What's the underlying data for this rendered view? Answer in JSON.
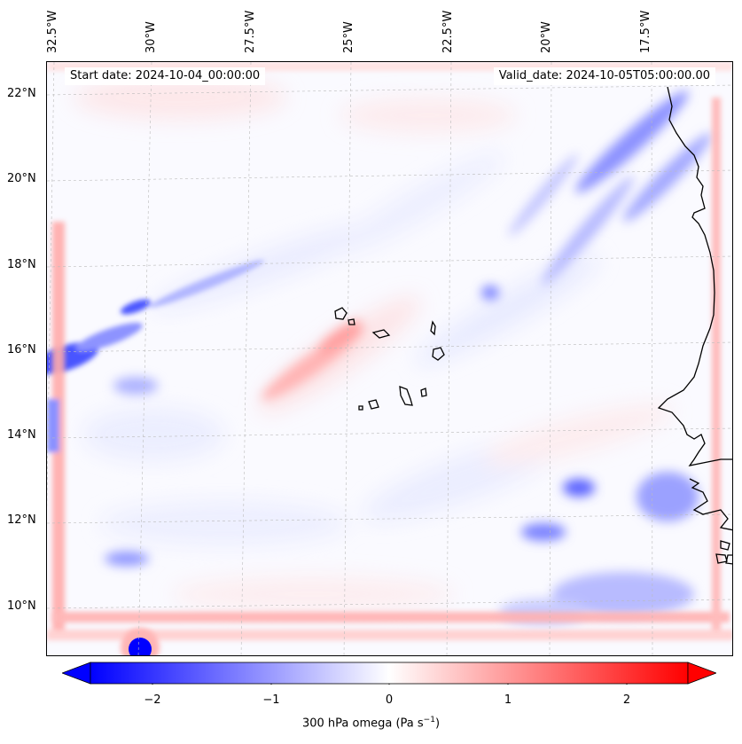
{
  "map": {
    "start_date": "Start date: 2024-10-04_00:00:00",
    "valid_date": "Valid_date: 2024-10-05T05:00:00.00",
    "lon_labels": [
      "32.5°W",
      "30°W",
      "27.5°W",
      "25°W",
      "22.5°W",
      "20°W",
      "17.5°W"
    ],
    "lat_labels": [
      "22°N",
      "20°N",
      "18°N",
      "16°N",
      "14°N",
      "12°N",
      "10°N"
    ],
    "gridlines": "on",
    "coastline_color": "#000000"
  },
  "colorbar": {
    "label_prefix": "300 hPa omega (Pa s",
    "label_exp": "−1",
    "label_suffix": ")",
    "ticks": [
      "−2",
      "−1",
      "0",
      "1",
      "2"
    ],
    "range": [
      -2.6,
      2.6
    ],
    "low_color": "#0000ff",
    "mid_color": "#ffffff",
    "high_color": "#ff0000",
    "extend": "both"
  }
}
